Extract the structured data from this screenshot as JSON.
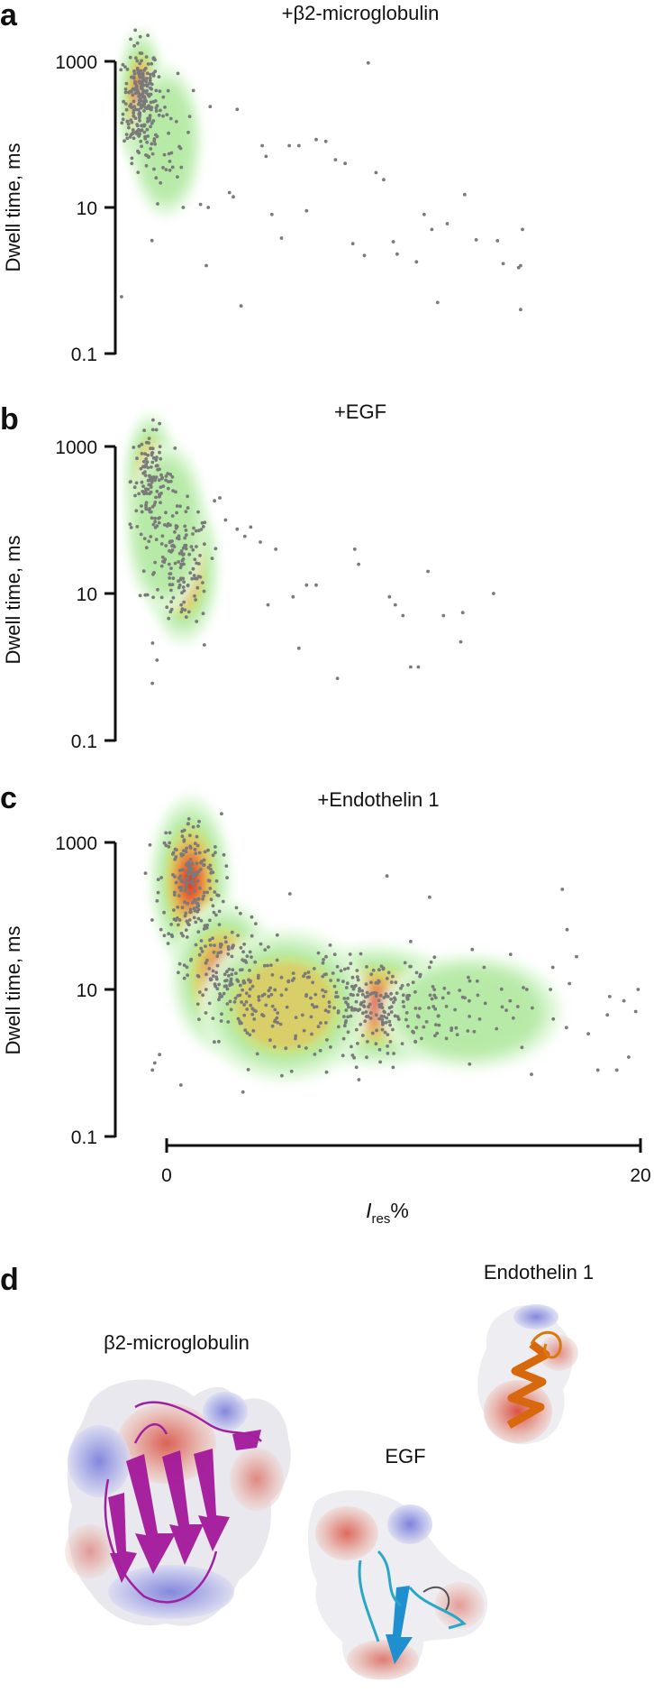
{
  "chart_data": [
    {
      "panel": "a",
      "type": "scatter",
      "title": "+β2-microglobulin",
      "xlabel": "",
      "ylabel": "Dwell time, ms",
      "yscale": "log",
      "ylim": [
        0.1,
        3000
      ],
      "xlim": [
        0,
        20
      ],
      "yticks": [
        "1000",
        "10",
        "0.1"
      ],
      "density_overlay": true,
      "clusters": [
        {
          "x": 0.2,
          "y": 300,
          "n": 230,
          "sx": 0.45,
          "sy": 0.38
        },
        {
          "x": 1.5,
          "y": 80,
          "n": 40,
          "sx": 0.7,
          "sy": 0.4
        }
      ],
      "points": [
        [
          2.4,
          10
        ],
        [
          3.3,
          11
        ],
        [
          3.7,
          10
        ],
        [
          3.6,
          1.6
        ],
        [
          -0.8,
          0.6
        ],
        [
          5.0,
          14
        ],
        [
          5.2,
          220
        ],
        [
          6.5,
          70
        ],
        [
          6.7,
          50
        ],
        [
          7.0,
          8
        ],
        [
          7.5,
          3.8
        ],
        [
          7.9,
          70
        ],
        [
          8.4,
          70
        ],
        [
          8.8,
          9
        ],
        [
          9.3,
          85
        ],
        [
          9.8,
          80
        ],
        [
          10.3,
          45
        ],
        [
          10.8,
          40
        ],
        [
          11.2,
          3.2
        ],
        [
          11.8,
          2.2
        ],
        [
          12.0,
          950
        ],
        [
          12.4,
          30
        ],
        [
          12.8,
          24
        ],
        [
          13.3,
          3.4
        ],
        [
          13.5,
          2.3
        ],
        [
          14.5,
          1.8
        ],
        [
          14.9,
          8
        ],
        [
          15.3,
          5
        ],
        [
          15.6,
          0.5
        ],
        [
          16.1,
          6
        ],
        [
          17.0,
          15
        ],
        [
          17.6,
          3.6
        ],
        [
          18.7,
          3.5
        ],
        [
          19.0,
          1.7
        ],
        [
          19.8,
          1.5
        ],
        [
          20.0,
          5
        ],
        [
          19.9,
          1.6
        ],
        [
          19.9,
          0.4
        ],
        [
          3.8,
          240
        ],
        [
          4.8,
          16
        ],
        [
          5.4,
          0.45
        ]
      ]
    },
    {
      "panel": "b",
      "type": "scatter",
      "title": "+EGF",
      "xlabel": "",
      "ylabel": "Dwell time, ms",
      "yscale": "log",
      "ylim": [
        0.1,
        3000
      ],
      "xlim": [
        0,
        20
      ],
      "yticks": [
        "1000",
        "10",
        "0.1"
      ],
      "density_overlay": true,
      "clusters": [
        {
          "x": 0.7,
          "y": 350,
          "n": 110,
          "sx": 0.5,
          "sy": 0.35
        },
        {
          "x": 2.4,
          "y": 22,
          "n": 110,
          "sx": 0.7,
          "sy": 0.4
        },
        {
          "x": 1.5,
          "y": 80,
          "n": 50,
          "sx": 0.8,
          "sy": 0.45
        }
      ],
      "points": [
        [
          0.8,
          0.6
        ],
        [
          3.5,
          2.0
        ],
        [
          4.6,
          100
        ],
        [
          5.6,
          60
        ],
        [
          5.9,
          80
        ],
        [
          6.4,
          50
        ],
        [
          6.8,
          7
        ],
        [
          7.2,
          40
        ],
        [
          8.1,
          9
        ],
        [
          8.4,
          1.8
        ],
        [
          8.8,
          13
        ],
        [
          9.3,
          13
        ],
        [
          10.4,
          0.7
        ],
        [
          11.3,
          40
        ],
        [
          11.5,
          25
        ],
        [
          13.1,
          9
        ],
        [
          13.4,
          7
        ],
        [
          13.8,
          5
        ],
        [
          14.2,
          1
        ],
        [
          14.6,
          1
        ],
        [
          15.1,
          20
        ],
        [
          15.9,
          5
        ],
        [
          16.8,
          2.2
        ],
        [
          16.9,
          5.5
        ],
        [
          18.5,
          10
        ],
        [
          4.3,
          200
        ],
        [
          5.2,
          75
        ],
        [
          3.9,
          30
        ]
      ]
    },
    {
      "panel": "c",
      "type": "scatter",
      "title": "+Endothelin 1",
      "xlabel": "I_res%",
      "ylabel": "Dwell time, ms",
      "yscale": "log",
      "ylim": [
        0.1,
        3000
      ],
      "xlim": [
        0,
        20
      ],
      "xticks": [
        "0",
        "20"
      ],
      "yticks": [
        "1000",
        "10",
        "0.1"
      ],
      "density_overlay": true,
      "clusters": [
        {
          "x": 1.0,
          "y": 300,
          "n": 190,
          "sx": 0.65,
          "sy": 0.45
        },
        {
          "x": 2.4,
          "y": 15,
          "n": 150,
          "sx": 0.85,
          "sy": 0.4
        },
        {
          "x": 8.8,
          "y": 6,
          "n": 230,
          "sx": 1.5,
          "sy": 0.32
        },
        {
          "x": 5.0,
          "y": 6,
          "n": 80,
          "sx": 1.4,
          "sy": 0.4
        },
        {
          "x": 12.8,
          "y": 5,
          "n": 40,
          "sx": 1.5,
          "sy": 0.3
        }
      ],
      "points": [
        [
          -0.6,
          0.8
        ],
        [
          -0.3,
          1.3
        ],
        [
          0.6,
          0.5
        ],
        [
          -0.5,
          1.0
        ],
        [
          5.2,
          200
        ],
        [
          6.9,
          40
        ],
        [
          7.1,
          30
        ],
        [
          9.3,
          350
        ],
        [
          10.3,
          45
        ],
        [
          11.1,
          180
        ],
        [
          12.9,
          35
        ],
        [
          13.4,
          20
        ],
        [
          14.5,
          7
        ],
        [
          15.2,
          10
        ],
        [
          15.4,
          0.7
        ],
        [
          16.2,
          10
        ],
        [
          16.7,
          230
        ],
        [
          16.9,
          65
        ],
        [
          17.3,
          28
        ],
        [
          17.8,
          2.5
        ],
        [
          18.2,
          0.8
        ],
        [
          18.7,
          8
        ],
        [
          19.0,
          0.8
        ],
        [
          19.3,
          7
        ],
        [
          19.5,
          1.2
        ],
        [
          19.8,
          5
        ],
        [
          19.9,
          10
        ],
        [
          20.1,
          3.5
        ],
        [
          20.2,
          4
        ],
        [
          16.3,
          20
        ],
        [
          17.0,
          12
        ],
        [
          18.6,
          4.5
        ]
      ]
    }
  ],
  "panel_d": {
    "letter": "d",
    "labels": {
      "b2m": "β2-microglobulin",
      "endothelin": "Endothelin 1",
      "egf": "EGF"
    }
  }
}
